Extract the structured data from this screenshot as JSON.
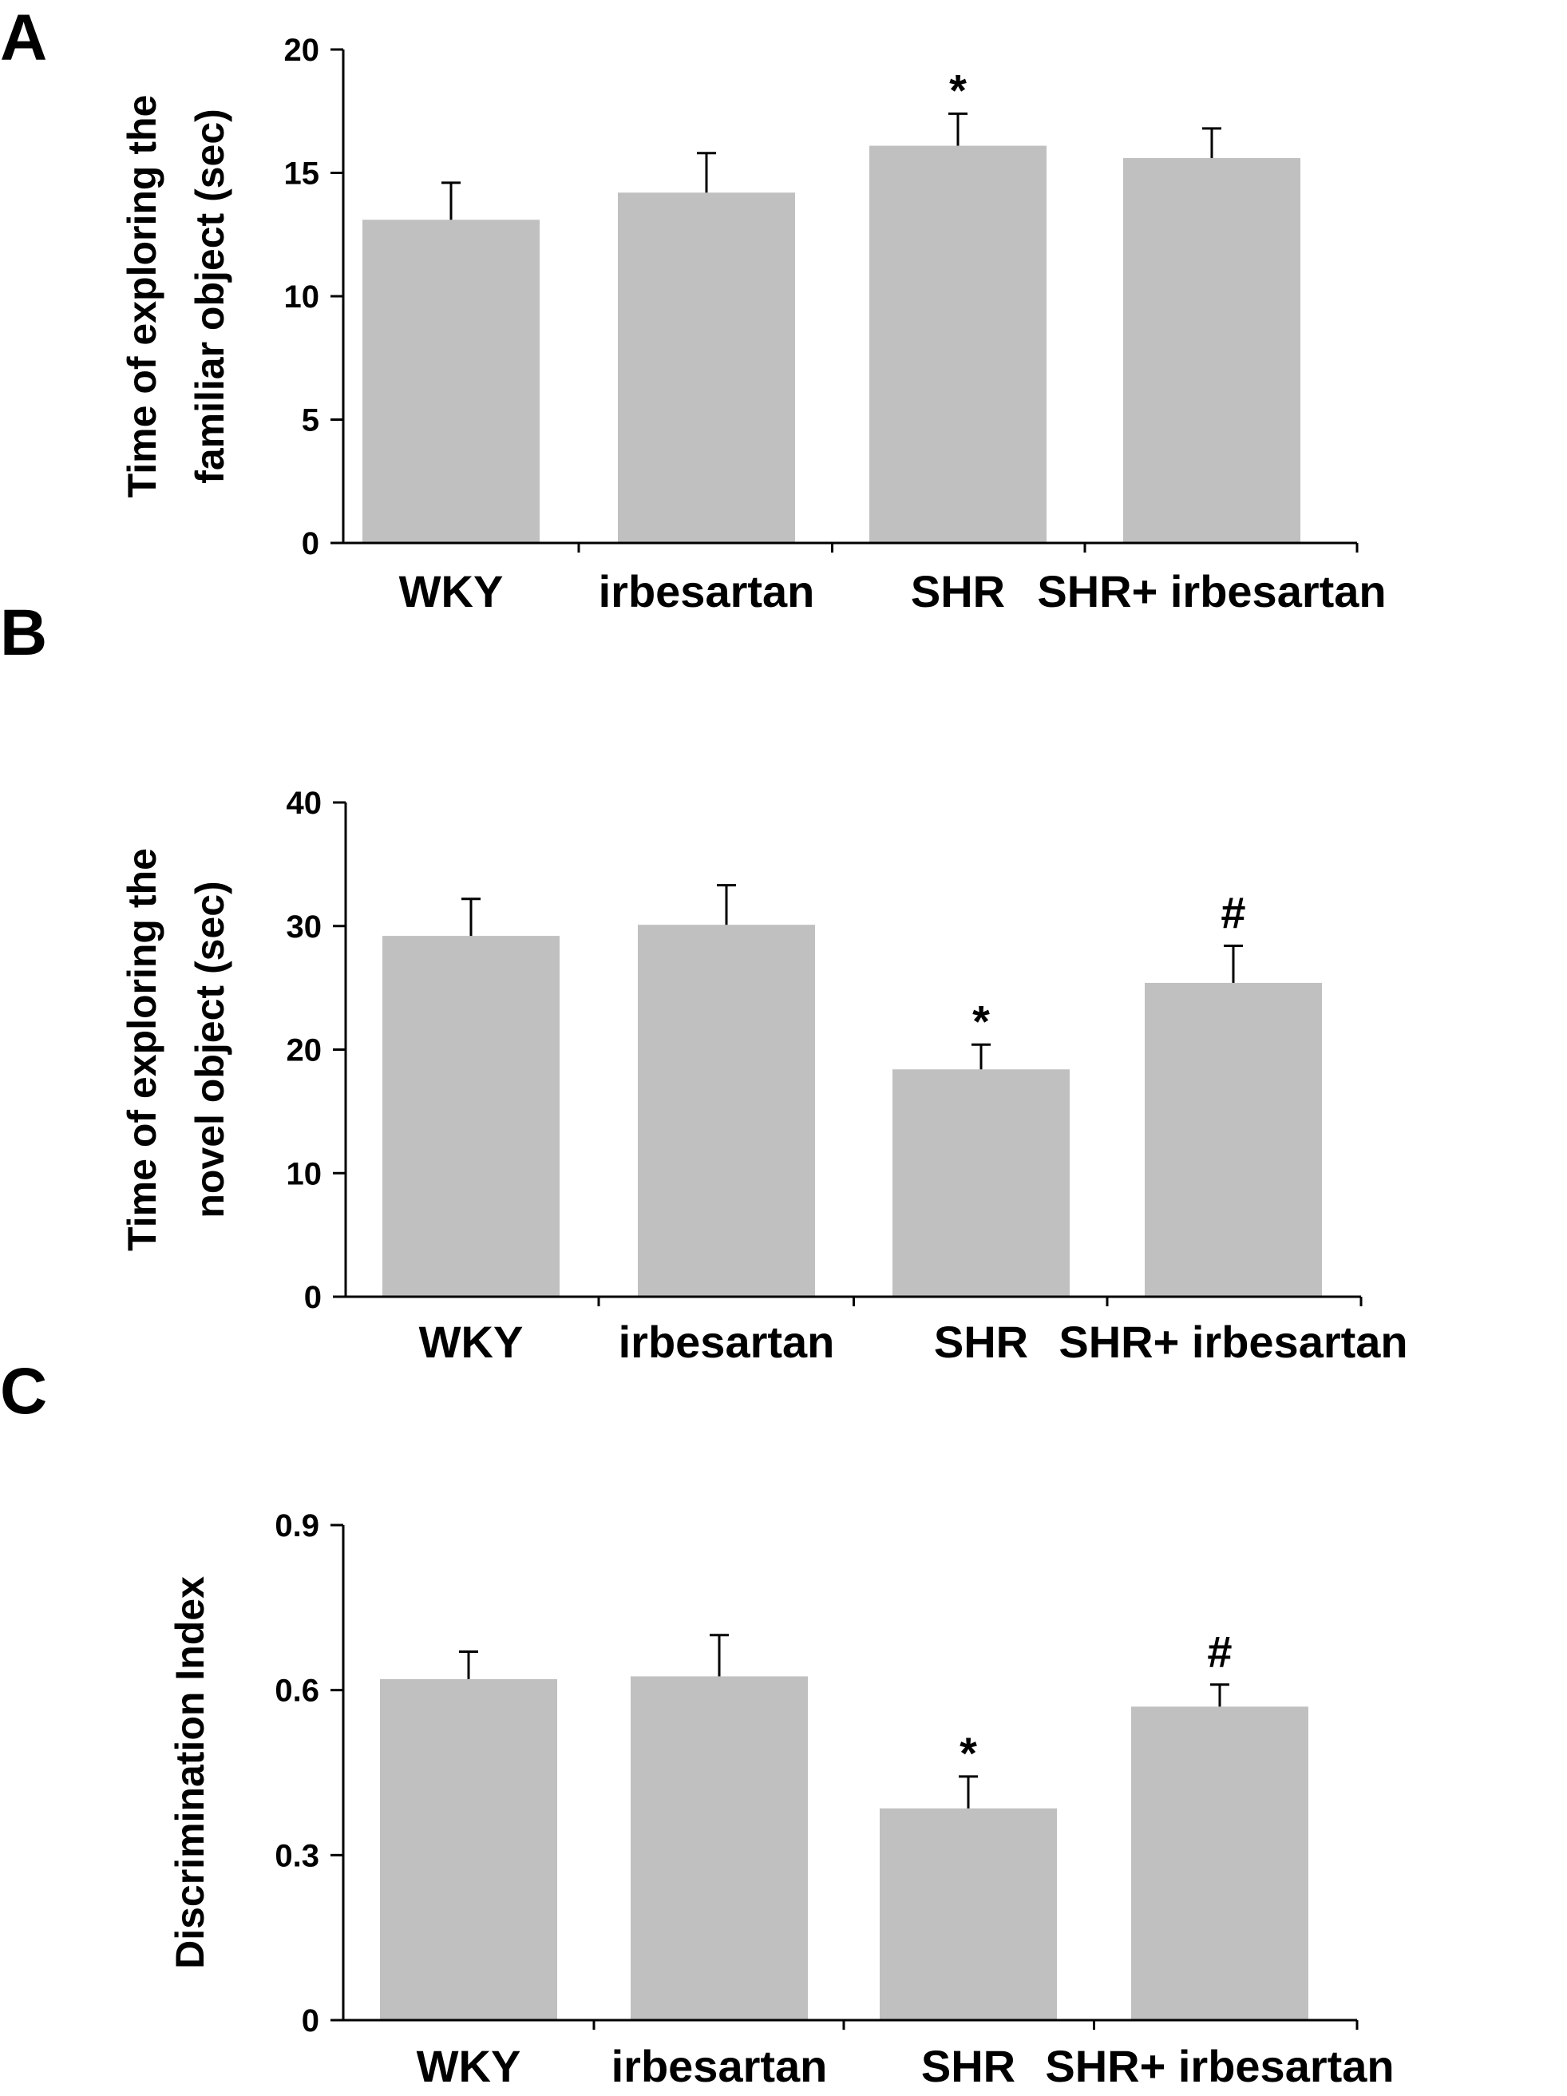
{
  "colors": {
    "bar": "#c0c0c0",
    "axis": "#000000",
    "background": "#ffffff"
  },
  "chart_data": [
    {
      "panel": "A",
      "type": "bar",
      "categories": [
        "WKY",
        "irbesartan",
        "SHR",
        "SHR+ irbesartan"
      ],
      "values": [
        13.1,
        14.2,
        16.1,
        15.6
      ],
      "errors": [
        1.5,
        1.6,
        1.3,
        1.2
      ],
      "annotations": [
        "",
        "",
        "*",
        ""
      ],
      "ylabel": [
        "Time of exploring the",
        "familiar object (sec)"
      ],
      "ylim": [
        0,
        20
      ],
      "yticks": [
        0,
        5,
        10,
        15,
        20
      ],
      "ytick_labels": [
        "0",
        "5",
        "10",
        "15",
        "20"
      ],
      "grid": false
    },
    {
      "panel": "B",
      "type": "bar",
      "categories": [
        "WKY",
        "irbesartan",
        "SHR",
        "SHR+ irbesartan"
      ],
      "values": [
        29.2,
        30.1,
        18.4,
        25.4
      ],
      "errors": [
        3.0,
        3.2,
        2.0,
        3.0
      ],
      "annotations": [
        "",
        "",
        "*",
        "#"
      ],
      "ylabel": [
        "Time of exploring the",
        "novel object (sec)"
      ],
      "ylim": [
        0,
        40
      ],
      "yticks": [
        0,
        10,
        20,
        30,
        40
      ],
      "ytick_labels": [
        "0",
        "10",
        "20",
        "30",
        "40"
      ],
      "grid": false
    },
    {
      "panel": "C",
      "type": "bar",
      "categories": [
        "WKY",
        "irbesartan",
        "SHR",
        "SHR+ irbesartan"
      ],
      "values": [
        0.62,
        0.625,
        0.385,
        0.57
      ],
      "errors": [
        0.05,
        0.075,
        0.058,
        0.04
      ],
      "annotations": [
        "",
        "",
        "*",
        "#"
      ],
      "ylabel": [
        "Discrimination Index"
      ],
      "ylim": [
        0,
        0.9
      ],
      "yticks": [
        0,
        0.3,
        0.6,
        0.9
      ],
      "ytick_labels": [
        "0",
        "0.3",
        "0.6",
        "0.9"
      ],
      "grid": false
    }
  ]
}
